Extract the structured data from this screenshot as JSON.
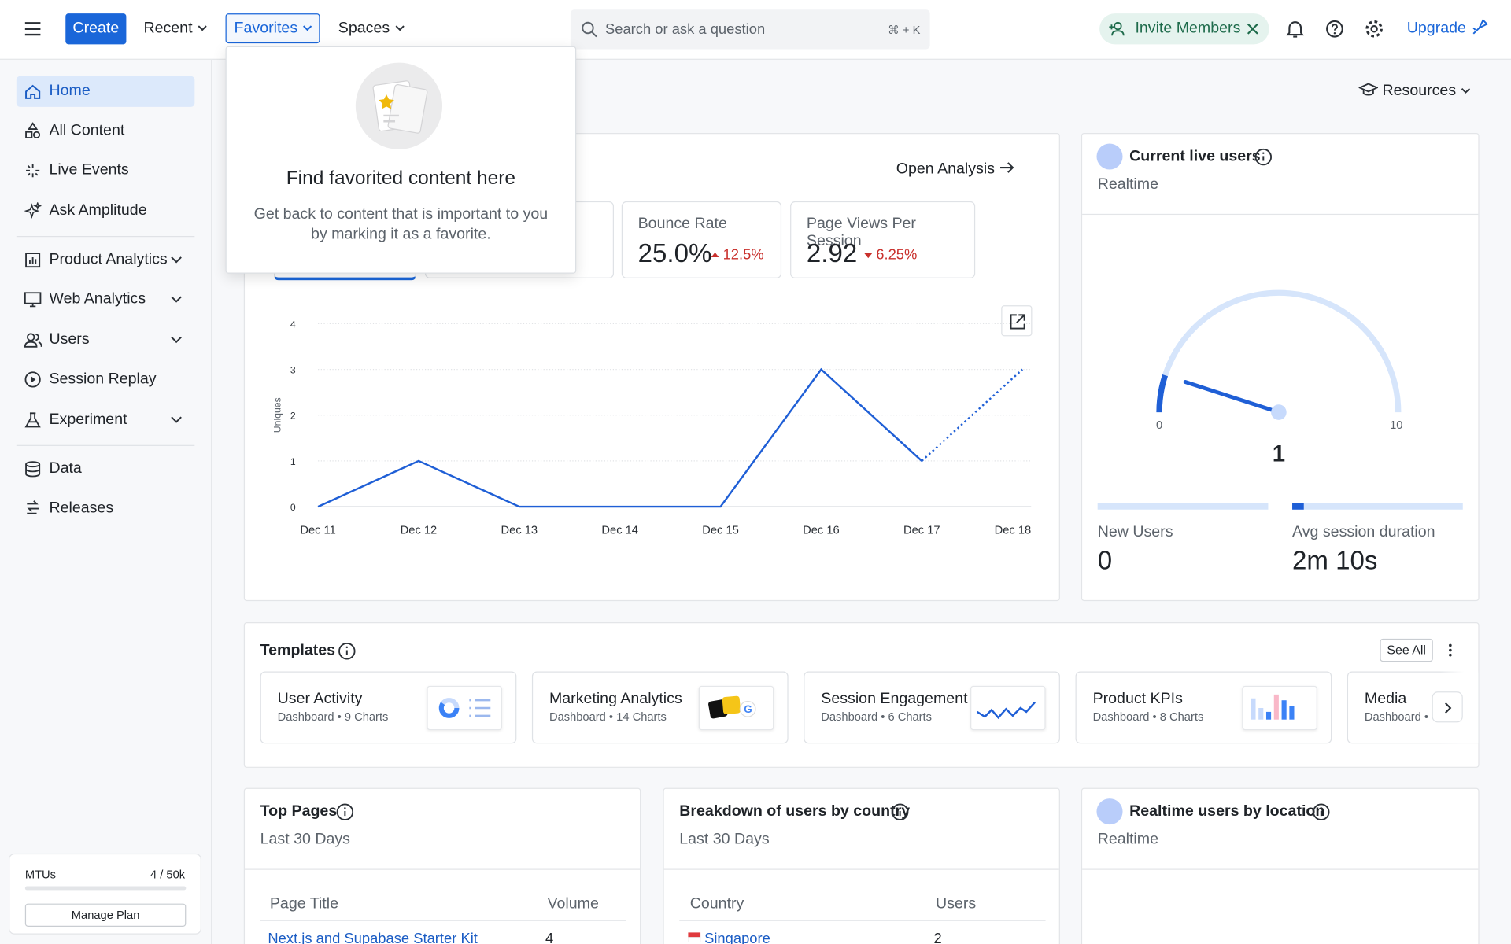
{
  "top_bar": {
    "create": "Create",
    "recent": "Recent",
    "favorites": "Favorites",
    "spaces": "Spaces",
    "search_placeholder": "Search or ask a question",
    "search_shortcut": "⌘ + K",
    "invite": "Invite Members",
    "upgrade": "Upgrade"
  },
  "sidebar": {
    "items": [
      "Home",
      "All Content",
      "Live Events",
      "Ask Amplitude",
      "Product Analytics",
      "Web Analytics",
      "Users",
      "Session Replay",
      "Experiment",
      "Data",
      "Releases"
    ],
    "mtu": {
      "label": "MTUs",
      "value": "4 / 50k",
      "button": "Manage Plan"
    }
  },
  "resources": "Resources",
  "analysis": {
    "open": "Open Analysis",
    "metrics": [
      {
        "label": "Bounce Rate",
        "value": "25.0%",
        "change": "12.5%"
      },
      {
        "label": "Page Views Per Session",
        "value": "2.92",
        "change": "6.25%"
      }
    ]
  },
  "chart_data": {
    "type": "line",
    "y_label": "Uniques",
    "categories": [
      "Dec 11",
      "Dec 12",
      "Dec 13",
      "Dec 14",
      "Dec 15",
      "Dec 16",
      "Dec 17",
      "Dec 18"
    ],
    "values": [
      0,
      1,
      0,
      0,
      0,
      3,
      1,
      3
    ],
    "color": "#1f5fd6",
    "ylim": [
      0,
      4
    ],
    "yticks": [
      0,
      1,
      2,
      3,
      4
    ],
    "grid": true
  },
  "live_users": {
    "title": "Current live users",
    "subtitle": "Realtime",
    "gauge": {
      "min": 0,
      "max": 10,
      "value": 1
    },
    "new_users": {
      "label": "New Users",
      "value": "0"
    },
    "avg_session": {
      "label": "Avg session duration",
      "value": "2m 10s"
    }
  },
  "templates": {
    "title": "Templates",
    "see_all": "See All",
    "items": [
      {
        "name": "User Activity",
        "meta": "Dashboard • 9 Charts"
      },
      {
        "name": "Marketing Analytics",
        "meta": "Dashboard • 14 Charts"
      },
      {
        "name": "Session Engagement",
        "meta": "Dashboard • 6 Charts"
      },
      {
        "name": "Product KPIs",
        "meta": "Dashboard • 8 Charts"
      },
      {
        "name": "Media",
        "meta": "Dashboard •"
      }
    ]
  },
  "top_pages": {
    "title": "Top Pages",
    "subtitle": "Last 30 Days",
    "columns": [
      "Page Title",
      "Volume"
    ],
    "rows": [
      [
        "Next.js and Supabase Starter Kit",
        "4"
      ]
    ]
  },
  "country": {
    "title": "Breakdown of users by country",
    "subtitle": "Last 30 Days",
    "columns": [
      "Country",
      "Users"
    ],
    "rows": [
      [
        "Singapore",
        "2"
      ]
    ]
  },
  "location": {
    "title": "Realtime users by location",
    "subtitle": "Realtime"
  },
  "favorites_dropdown": {
    "title": "Find favorited content here",
    "description": "Get back to content that is important to you by marking it as a favorite."
  }
}
